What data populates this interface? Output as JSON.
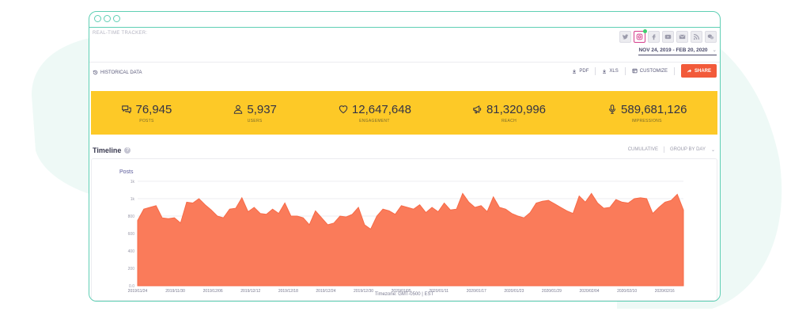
{
  "app": {
    "tracker_label": "REAL-TIME TRACKER:",
    "date_range": "NOV 24, 2019 - FEB 20, 2020"
  },
  "social_icons": [
    {
      "name": "twitter-icon",
      "glyph": "🐦",
      "active": false
    },
    {
      "name": "instagram-icon",
      "glyph": "◎",
      "active": true
    },
    {
      "name": "facebook-icon",
      "glyph": "f",
      "active": false
    },
    {
      "name": "youtube-icon",
      "glyph": "▶",
      "active": false
    },
    {
      "name": "email-icon",
      "glyph": "✉",
      "active": false
    },
    {
      "name": "rss-icon",
      "glyph": "≋",
      "active": false
    },
    {
      "name": "wechat-icon",
      "glyph": "❞",
      "active": false
    }
  ],
  "toolbar": {
    "historical": "HISTORICAL DATA",
    "pdf": "PDF",
    "xls": "XLS",
    "customize": "CUSTOMIZE",
    "share": "SHARE"
  },
  "stats": [
    {
      "key": "posts",
      "value": "76,945",
      "label": "POSTS",
      "icon": "posts-icon"
    },
    {
      "key": "users",
      "value": "5,937",
      "label": "USERS",
      "icon": "user-icon"
    },
    {
      "key": "engagement",
      "value": "12,647,648",
      "label": "ENGAGEMENT",
      "icon": "heart-icon"
    },
    {
      "key": "reach",
      "value": "81,320,996",
      "label": "REACH",
      "icon": "megaphone-icon"
    },
    {
      "key": "impressions",
      "value": "589,681,126",
      "label": "IMPRESSIONS",
      "icon": "microphone-icon"
    }
  ],
  "timeline": {
    "title": "Timeline",
    "cumulative": "CUMULATIVE",
    "group_by": "GROUP BY DAY",
    "timezone": "Timezone: GMT-0500 | EST"
  },
  "colors": {
    "accent": "#5fcfb4",
    "stats_bg": "#fdc927",
    "area_fill": "#fa7b5a",
    "share_btn": "#f25a3a"
  },
  "chart_data": {
    "type": "area",
    "ylabel": "Posts",
    "yticks": [
      "0.0",
      "200",
      "400",
      "600",
      "800",
      "1k",
      "1k"
    ],
    "ylim": [
      0,
      1200
    ],
    "grid": true,
    "xticks": [
      "2019/11/24",
      "2019/11/30",
      "2019/12/06",
      "2019/12/12",
      "2019/12/18",
      "2019/12/24",
      "2019/12/30",
      "2020/01/05",
      "2020/01/11",
      "2020/01/17",
      "2020/01/23",
      "2020/01/29",
      "2020/02/04",
      "2020/02/10",
      "2020/02/16"
    ],
    "series": [
      {
        "values": [
          750,
          880,
          900,
          920,
          780,
          770,
          780,
          720,
          960,
          950,
          1000,
          930,
          870,
          800,
          780,
          880,
          890,
          1010,
          850,
          900,
          830,
          820,
          880,
          830,
          950,
          800,
          800,
          780,
          700,
          860,
          780,
          700,
          720,
          800,
          790,
          820,
          900,
          700,
          650,
          800,
          880,
          860,
          820,
          920,
          900,
          880,
          930,
          840,
          900,
          850,
          950,
          870,
          880,
          1060,
          960,
          900,
          920,
          850,
          1020,
          900,
          880,
          830,
          800,
          780,
          840,
          950,
          970,
          980,
          940,
          900,
          860,
          830,
          1030,
          960,
          1060,
          950,
          890,
          900,
          990,
          960,
          950,
          1000,
          1010,
          1000,
          830,
          900,
          960,
          980,
          1050,
          870
        ]
      }
    ]
  }
}
